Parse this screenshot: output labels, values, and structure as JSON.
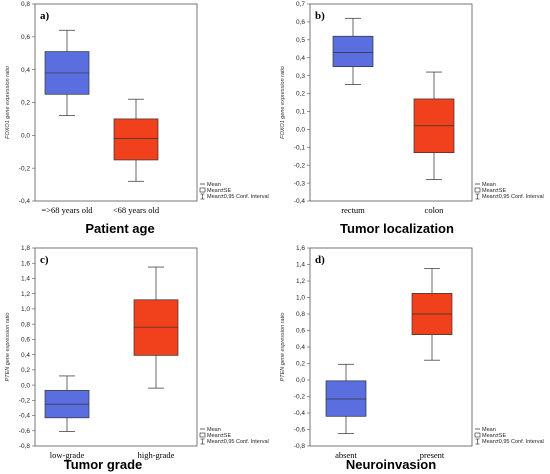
{
  "chart_data": [
    {
      "type": "box",
      "panel_label": "a)",
      "caption": "Patient age",
      "ylabel": "FOXO1 gene expression ratio",
      "ylim": [
        -0.4,
        0.8
      ],
      "yticks": [
        "-0,4",
        "-0,2",
        "0,0",
        "0,2",
        "0,4",
        "0,6",
        "0,8"
      ],
      "tick_values": [
        -0.4,
        -0.2,
        0.0,
        0.2,
        0.4,
        0.6,
        0.8
      ],
      "categories": [
        "=>68 years old",
        "<68 years old"
      ],
      "boxes": [
        {
          "category": "=>68 years old",
          "mean": 0.38,
          "se_low": 0.25,
          "se_high": 0.51,
          "ci_low": 0.12,
          "ci_high": 0.64,
          "color": "#5b6ee0"
        },
        {
          "category": "<68 years old",
          "mean": -0.02,
          "se_low": -0.15,
          "se_high": 0.1,
          "ci_low": -0.28,
          "ci_high": 0.22,
          "color": "#f0401c"
        }
      ],
      "legend": [
        "Mean",
        "Mean±SE",
        "Mean±0,95 Conf. Interval"
      ]
    },
    {
      "type": "box",
      "panel_label": "b)",
      "caption": "Tumor localization",
      "ylabel": "FOXO1 gene expression ratio",
      "ylim": [
        -0.4,
        0.7
      ],
      "yticks": [
        "-0,4",
        "-0,3",
        "-0,2",
        "-0,1",
        "0,0",
        "0,1",
        "0,2",
        "0,3",
        "0,4",
        "0,5",
        "0,6",
        "0,7"
      ],
      "tick_values": [
        -0.4,
        -0.3,
        -0.2,
        -0.1,
        0.0,
        0.1,
        0.2,
        0.3,
        0.4,
        0.5,
        0.6,
        0.7
      ],
      "categories": [
        "rectum",
        "colon"
      ],
      "boxes": [
        {
          "category": "rectum",
          "mean": 0.43,
          "se_low": 0.35,
          "se_high": 0.52,
          "ci_low": 0.25,
          "ci_high": 0.62,
          "color": "#5b6ee0"
        },
        {
          "category": "colon",
          "mean": 0.02,
          "se_low": -0.13,
          "se_high": 0.17,
          "ci_low": -0.28,
          "ci_high": 0.32,
          "color": "#f0401c"
        }
      ],
      "legend": [
        "Mean",
        "Mean±SE",
        "Mean±0,95 Conf. Interval"
      ]
    },
    {
      "type": "box",
      "panel_label": "c)",
      "caption": "Tumor grade",
      "ylabel": "PTEN gene expression ratio",
      "ylim": [
        -0.8,
        1.8
      ],
      "yticks": [
        "-0,8",
        "-0,6",
        "-0,4",
        "-0,2",
        "0,0",
        "0,2",
        "0,4",
        "0,6",
        "0,8",
        "1,0",
        "1,2",
        "1,4",
        "1,6",
        "1,8"
      ],
      "tick_values": [
        -0.8,
        -0.6,
        -0.4,
        -0.2,
        0.0,
        0.2,
        0.4,
        0.6,
        0.8,
        1.0,
        1.2,
        1.4,
        1.6,
        1.8
      ],
      "categories": [
        "low-grade",
        "high-grade"
      ],
      "boxes": [
        {
          "category": "low-grade",
          "mean": -0.25,
          "se_low": -0.43,
          "se_high": -0.07,
          "ci_low": -0.61,
          "ci_high": 0.12,
          "color": "#5b6ee0"
        },
        {
          "category": "high-grade",
          "mean": 0.76,
          "se_low": 0.39,
          "se_high": 1.12,
          "ci_low": -0.04,
          "ci_high": 1.55,
          "color": "#f0401c"
        }
      ],
      "legend": [
        "Mean",
        "Mean±SE",
        "Mean±0,95 Conf. Interval"
      ]
    },
    {
      "type": "box",
      "panel_label": "d)",
      "caption": "Neuroinvasion",
      "ylabel": "PTEN gene expression ratio",
      "ylim": [
        -0.8,
        1.6
      ],
      "yticks": [
        "-0,8",
        "-0,6",
        "-0,4",
        "-0,2",
        "0,0",
        "0,2",
        "0,4",
        "0,6",
        "0,8",
        "1,0",
        "1,2",
        "1,4",
        "1,6"
      ],
      "tick_values": [
        -0.8,
        -0.6,
        -0.4,
        -0.2,
        0.0,
        0.2,
        0.4,
        0.6,
        0.8,
        1.0,
        1.2,
        1.4,
        1.6
      ],
      "categories": [
        "absent",
        "present"
      ],
      "boxes": [
        {
          "category": "absent",
          "mean": -0.23,
          "se_low": -0.44,
          "se_high": -0.01,
          "ci_low": -0.65,
          "ci_high": 0.19,
          "color": "#5b6ee0"
        },
        {
          "category": "present",
          "mean": 0.8,
          "se_low": 0.55,
          "se_high": 1.05,
          "ci_low": 0.24,
          "ci_high": 1.35,
          "color": "#f0401c"
        }
      ],
      "legend": [
        "Mean",
        "Mean±SE",
        "Mean±0,95 Conf. Interval"
      ]
    }
  ]
}
